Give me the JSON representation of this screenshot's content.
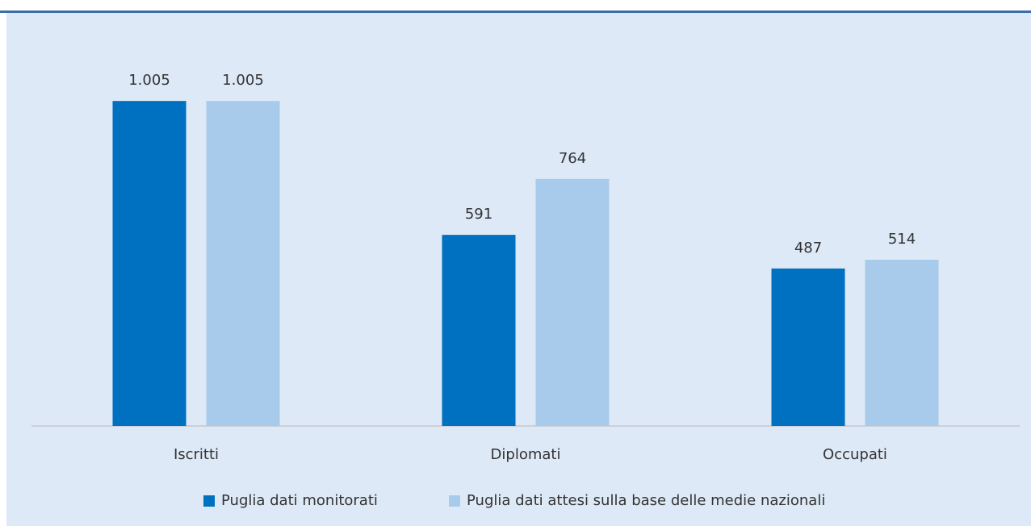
{
  "chart_data": {
    "type": "bar",
    "categories": [
      "Iscritti",
      "Diplomati",
      "Occupati"
    ],
    "series": [
      {
        "name": "Puglia dati monitorati",
        "color": "#0070c0",
        "values": [
          1005,
          591,
          487
        ],
        "value_labels": [
          "1.005",
          "591",
          "487"
        ]
      },
      {
        "name": "Puglia dati attesi sulla base delle medie nazionali",
        "color": "#a9cbeb",
        "values": [
          1005,
          764,
          514
        ],
        "value_labels": [
          "1.005",
          "764",
          "514"
        ]
      }
    ],
    "ylim": [
      0,
      1200
    ],
    "grid": false,
    "legend": "bottom"
  }
}
